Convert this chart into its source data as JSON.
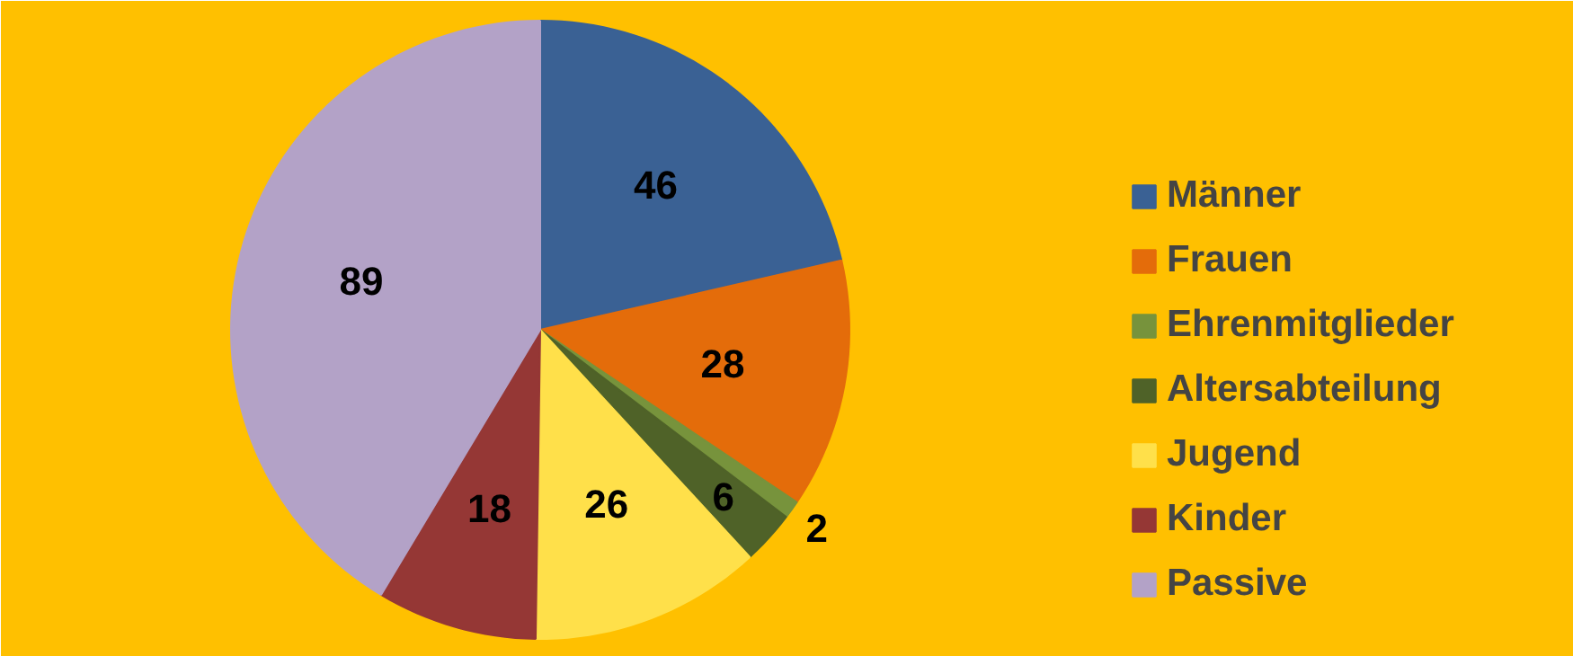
{
  "chart_data": {
    "type": "pie",
    "categories": [
      "Männer",
      "Frauen",
      "Ehrenmitglieder",
      "Altersabteilung",
      "Jugend",
      "Kinder",
      "Passive"
    ],
    "values": [
      46,
      28,
      2,
      6,
      26,
      18,
      89
    ],
    "colors": [
      "#3a6194",
      "#e46c0a",
      "#77933c",
      "#4f6228",
      "#ffe04a",
      "#953735",
      "#b3a2c7"
    ],
    "data_labels": true,
    "legend": "right"
  }
}
